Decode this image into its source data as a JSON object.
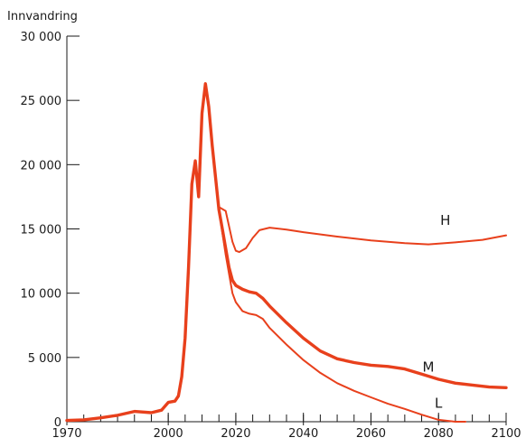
{
  "chart_data": {
    "type": "line",
    "title": "",
    "xlabel": "",
    "ylabel": "Innvandring",
    "xlim": [
      1970,
      2100
    ],
    "ylim": [
      0,
      30000
    ],
    "x_ticks": [
      1970,
      2000,
      2020,
      2040,
      2060,
      2080,
      2100
    ],
    "y_ticks": [
      0,
      5000,
      10000,
      15000,
      20000,
      25000,
      30000
    ],
    "y_tick_labels": [
      "0",
      "5 000",
      "10 000",
      "15 000",
      "20 000",
      "25 000",
      "30 000"
    ],
    "grid": false,
    "series": [
      {
        "name": "H",
        "color": "#e8401c",
        "x": [
          2015,
          2017,
          2019,
          2020,
          2021,
          2023,
          2025,
          2027,
          2030,
          2035,
          2040,
          2050,
          2060,
          2070,
          2077,
          2085,
          2093,
          2100
        ],
        "values": [
          16700,
          16400,
          14000,
          13300,
          13200,
          13500,
          14300,
          14900,
          15100,
          14950,
          14750,
          14400,
          14100,
          13900,
          13800,
          13950,
          14150,
          14500
        ]
      },
      {
        "name": "M",
        "color": "#e8401c",
        "x": [
          1970,
          1975,
          1980,
          1985,
          1990,
          1995,
          1998,
          2000,
          2002,
          2003,
          2004,
          2005,
          2006,
          2007,
          2008,
          2009,
          2010,
          2011,
          2012,
          2013,
          2014,
          2015,
          2016,
          2017,
          2018,
          2019,
          2020,
          2022,
          2024,
          2026,
          2028,
          2030,
          2035,
          2040,
          2045,
          2050,
          2055,
          2060,
          2065,
          2070,
          2075,
          2080,
          2085,
          2090,
          2095,
          2100
        ],
        "values": [
          100,
          150,
          300,
          500,
          800,
          700,
          900,
          1500,
          1600,
          2000,
          3500,
          6500,
          12000,
          18500,
          20300,
          17500,
          24000,
          26300,
          24500,
          21500,
          19000,
          16500,
          15000,
          13500,
          12000,
          11000,
          10600,
          10300,
          10100,
          10000,
          9600,
          9000,
          7700,
          6500,
          5500,
          4900,
          4600,
          4400,
          4300,
          4100,
          3700,
          3300,
          3000,
          2850,
          2700,
          2650
        ]
      },
      {
        "name": "L",
        "color": "#e8401c",
        "x": [
          2015,
          2017,
          2019,
          2020,
          2022,
          2024,
          2026,
          2028,
          2030,
          2035,
          2040,
          2045,
          2050,
          2055,
          2060,
          2065,
          2070,
          2075,
          2080,
          2085,
          2088
        ],
        "values": [
          16500,
          13000,
          10000,
          9300,
          8600,
          8400,
          8300,
          8000,
          7300,
          6000,
          4800,
          3800,
          3000,
          2400,
          1900,
          1400,
          1000,
          550,
          150,
          0,
          0
        ]
      }
    ]
  }
}
